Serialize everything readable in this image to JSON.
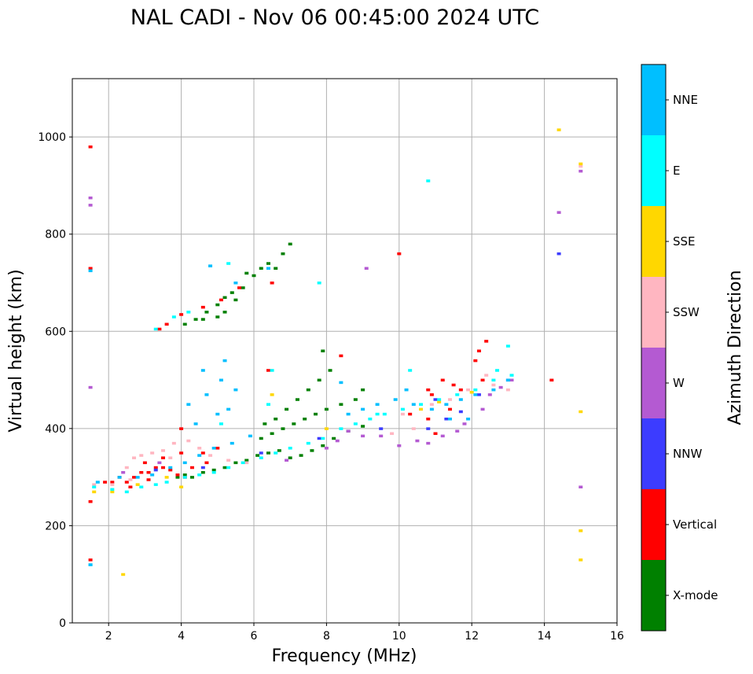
{
  "chart_data": {
    "type": "scatter",
    "title": "NAL CADI - Nov 06 00:45:00 2024 UTC",
    "xlabel": "Frequency (MHz)",
    "ylabel": "Virtual height (km)",
    "xlim": [
      1,
      16
    ],
    "ylim": [
      0,
      1120
    ],
    "xticks": [
      2,
      4,
      6,
      8,
      10,
      12,
      14,
      16
    ],
    "yticks": [
      0,
      200,
      400,
      600,
      800,
      1000
    ],
    "grid": true,
    "colorbar": {
      "label": "Azimuth Direction",
      "categories": [
        {
          "name": "X-mode",
          "color": "#008000"
        },
        {
          "name": "Vertical",
          "color": "#ff0000"
        },
        {
          "name": "NNW",
          "color": "#3c3cff"
        },
        {
          "name": "W",
          "color": "#b45ad2"
        },
        {
          "name": "SSW",
          "color": "#ffb6c1"
        },
        {
          "name": "SSE",
          "color": "#ffd700"
        },
        {
          "name": "E",
          "color": "#00ffff"
        },
        {
          "name": "NNE",
          "color": "#00bfff"
        }
      ]
    },
    "series": [
      {
        "name": "X-mode",
        "points": [
          [
            3.9,
            300
          ],
          [
            4.1,
            305
          ],
          [
            4.3,
            300
          ],
          [
            4.6,
            310
          ],
          [
            4.9,
            315
          ],
          [
            5.2,
            320
          ],
          [
            5.5,
            330
          ],
          [
            5.8,
            335
          ],
          [
            6.1,
            345
          ],
          [
            6.4,
            350
          ],
          [
            6.7,
            355
          ],
          [
            7.0,
            340
          ],
          [
            7.3,
            345
          ],
          [
            7.6,
            355
          ],
          [
            7.9,
            365
          ],
          [
            8.2,
            380
          ],
          [
            8.6,
            395
          ],
          [
            9.0,
            405
          ],
          [
            6.2,
            380
          ],
          [
            6.5,
            390
          ],
          [
            6.8,
            400
          ],
          [
            7.1,
            410
          ],
          [
            7.4,
            420
          ],
          [
            7.7,
            430
          ],
          [
            8.0,
            440
          ],
          [
            8.4,
            450
          ],
          [
            8.8,
            460
          ],
          [
            9.0,
            480
          ],
          [
            6.3,
            410
          ],
          [
            6.6,
            420
          ],
          [
            6.9,
            440
          ],
          [
            7.2,
            460
          ],
          [
            7.5,
            480
          ],
          [
            7.8,
            500
          ],
          [
            8.1,
            520
          ],
          [
            7.9,
            560
          ],
          [
            4.1,
            615
          ],
          [
            4.4,
            625
          ],
          [
            4.7,
            640
          ],
          [
            5.0,
            655
          ],
          [
            5.2,
            670
          ],
          [
            5.4,
            680
          ],
          [
            5.7,
            690
          ],
          [
            6.0,
            715
          ],
          [
            6.4,
            740
          ],
          [
            6.8,
            760
          ],
          [
            7.0,
            780
          ],
          [
            5.2,
            640
          ],
          [
            5.5,
            665
          ],
          [
            4.6,
            625
          ],
          [
            5.0,
            630
          ],
          [
            5.8,
            720
          ],
          [
            6.2,
            730
          ],
          [
            6.6,
            730
          ]
        ]
      },
      {
        "name": "Vertical",
        "points": [
          [
            1.5,
            980
          ],
          [
            1.5,
            730
          ],
          [
            1.5,
            250
          ],
          [
            1.5,
            130
          ],
          [
            1.9,
            290
          ],
          [
            2.1,
            290
          ],
          [
            2.3,
            300
          ],
          [
            2.5,
            290
          ],
          [
            2.7,
            300
          ],
          [
            2.9,
            310
          ],
          [
            3.1,
            310
          ],
          [
            3.3,
            320
          ],
          [
            3.5,
            320
          ],
          [
            3.7,
            315
          ],
          [
            3.9,
            305
          ],
          [
            4.1,
            300
          ],
          [
            4.3,
            320
          ],
          [
            4.7,
            330
          ],
          [
            3.1,
            295
          ],
          [
            2.6,
            280
          ],
          [
            3.0,
            330
          ],
          [
            3.5,
            340
          ],
          [
            4.0,
            350
          ],
          [
            4.0,
            400
          ],
          [
            4.6,
            350
          ],
          [
            5.0,
            360
          ],
          [
            6.4,
            520
          ],
          [
            8.4,
            550
          ],
          [
            10.0,
            760
          ],
          [
            10.8,
            480
          ],
          [
            10.9,
            470
          ],
          [
            11.2,
            500
          ],
          [
            11.5,
            490
          ],
          [
            11.7,
            480
          ],
          [
            12.1,
            540
          ],
          [
            12.2,
            560
          ],
          [
            12.4,
            580
          ],
          [
            14.2,
            500
          ],
          [
            3.4,
            605
          ],
          [
            3.6,
            615
          ],
          [
            4.0,
            635
          ],
          [
            4.6,
            650
          ],
          [
            5.1,
            665
          ],
          [
            5.6,
            690
          ],
          [
            6.5,
            700
          ],
          [
            10.3,
            430
          ],
          [
            10.8,
            420
          ],
          [
            11.4,
            440
          ],
          [
            12.3,
            500
          ],
          [
            11.0,
            390
          ]
        ]
      },
      {
        "name": "NNW",
        "points": [
          [
            3.3,
            315
          ],
          [
            4.6,
            320
          ],
          [
            6.2,
            350
          ],
          [
            10.8,
            400
          ],
          [
            11.3,
            420
          ],
          [
            11.7,
            435
          ],
          [
            12.2,
            470
          ],
          [
            13.0,
            500
          ],
          [
            14.4,
            760
          ],
          [
            7.8,
            380
          ],
          [
            9.5,
            400
          ],
          [
            11.0,
            460
          ]
        ]
      },
      {
        "name": "W",
        "points": [
          [
            1.5,
            860
          ],
          [
            1.5,
            875
          ],
          [
            1.5,
            485
          ],
          [
            8.0,
            360
          ],
          [
            8.3,
            375
          ],
          [
            8.6,
            395
          ],
          [
            9.0,
            385
          ],
          [
            9.5,
            385
          ],
          [
            10.0,
            365
          ],
          [
            10.5,
            375
          ],
          [
            10.8,
            370
          ],
          [
            11.2,
            385
          ],
          [
            11.6,
            395
          ],
          [
            11.8,
            410
          ],
          [
            12.3,
            440
          ],
          [
            12.5,
            470
          ],
          [
            12.8,
            485
          ],
          [
            13.1,
            500
          ],
          [
            14.4,
            845
          ],
          [
            15.0,
            280
          ],
          [
            15.0,
            930
          ],
          [
            9.1,
            730
          ],
          [
            2.4,
            310
          ],
          [
            3.4,
            330
          ],
          [
            6.9,
            335
          ]
        ]
      },
      {
        "name": "SSW",
        "points": [
          [
            1.6,
            285
          ],
          [
            2.1,
            285
          ],
          [
            2.5,
            320
          ],
          [
            2.7,
            340
          ],
          [
            2.9,
            345
          ],
          [
            3.2,
            350
          ],
          [
            3.5,
            355
          ],
          [
            3.8,
            370
          ],
          [
            4.2,
            375
          ],
          [
            4.5,
            360
          ],
          [
            4.8,
            345
          ],
          [
            5.3,
            335
          ],
          [
            5.8,
            330
          ],
          [
            9.8,
            390
          ],
          [
            10.4,
            400
          ],
          [
            10.9,
            450
          ],
          [
            11.4,
            460
          ],
          [
            11.9,
            480
          ],
          [
            12.4,
            510
          ],
          [
            12.6,
            490
          ],
          [
            13.0,
            480
          ],
          [
            15.0,
            940
          ],
          [
            2.6,
            295
          ],
          [
            3.7,
            340
          ],
          [
            10.1,
            430
          ]
        ]
      },
      {
        "name": "SSE",
        "points": [
          [
            1.6,
            270
          ],
          [
            2.1,
            270
          ],
          [
            2.4,
            100
          ],
          [
            2.8,
            285
          ],
          [
            3.6,
            300
          ],
          [
            4.0,
            280
          ],
          [
            6.5,
            470
          ],
          [
            10.6,
            440
          ],
          [
            12.0,
            475
          ],
          [
            14.4,
            1015
          ],
          [
            15.0,
            945
          ],
          [
            15.0,
            435
          ],
          [
            15.0,
            190
          ],
          [
            15.0,
            130
          ],
          [
            8.0,
            400
          ],
          [
            11.1,
            455
          ]
        ]
      },
      {
        "name": "E",
        "points": [
          [
            1.5,
            120
          ],
          [
            1.6,
            280
          ],
          [
            2.1,
            275
          ],
          [
            2.5,
            270
          ],
          [
            2.9,
            280
          ],
          [
            3.3,
            285
          ],
          [
            3.6,
            290
          ],
          [
            4.1,
            300
          ],
          [
            4.5,
            305
          ],
          [
            4.9,
            310
          ],
          [
            5.3,
            320
          ],
          [
            5.7,
            330
          ],
          [
            6.2,
            340
          ],
          [
            6.6,
            350
          ],
          [
            7.0,
            360
          ],
          [
            7.5,
            370
          ],
          [
            7.9,
            380
          ],
          [
            8.4,
            400
          ],
          [
            8.8,
            410
          ],
          [
            9.2,
            420
          ],
          [
            9.6,
            430
          ],
          [
            10.1,
            440
          ],
          [
            10.6,
            450
          ],
          [
            11.1,
            460
          ],
          [
            11.6,
            470
          ],
          [
            12.1,
            480
          ],
          [
            12.6,
            500
          ],
          [
            13.1,
            510
          ],
          [
            13.0,
            570
          ],
          [
            10.8,
            910
          ],
          [
            7.8,
            700
          ],
          [
            3.3,
            605
          ],
          [
            3.8,
            630
          ],
          [
            4.2,
            640
          ],
          [
            5.1,
            410
          ],
          [
            6.4,
            450
          ],
          [
            6.5,
            520
          ],
          [
            5.3,
            740
          ],
          [
            9.4,
            430
          ],
          [
            10.3,
            520
          ],
          [
            12.7,
            520
          ]
        ]
      },
      {
        "name": "NNE",
        "points": [
          [
            1.5,
            725
          ],
          [
            1.5,
            120
          ],
          [
            1.7,
            290
          ],
          [
            2.3,
            300
          ],
          [
            2.8,
            300
          ],
          [
            3.2,
            305
          ],
          [
            3.7,
            320
          ],
          [
            4.1,
            330
          ],
          [
            4.5,
            345
          ],
          [
            4.9,
            360
          ],
          [
            5.4,
            370
          ],
          [
            5.9,
            385
          ],
          [
            4.6,
            520
          ],
          [
            5.2,
            540
          ],
          [
            4.2,
            450
          ],
          [
            4.7,
            470
          ],
          [
            5.1,
            500
          ],
          [
            5.5,
            480
          ],
          [
            5.0,
            430
          ],
          [
            5.3,
            440
          ],
          [
            4.4,
            410
          ],
          [
            4.8,
            735
          ],
          [
            5.5,
            700
          ],
          [
            6.4,
            730
          ],
          [
            8.4,
            495
          ],
          [
            8.6,
            430
          ],
          [
            9.0,
            440
          ],
          [
            9.4,
            450
          ],
          [
            9.9,
            460
          ],
          [
            10.4,
            450
          ],
          [
            10.9,
            440
          ],
          [
            11.3,
            450
          ],
          [
            11.7,
            460
          ],
          [
            12.1,
            470
          ],
          [
            12.6,
            480
          ],
          [
            13.0,
            500
          ],
          [
            10.2,
            480
          ],
          [
            11.4,
            420
          ],
          [
            11.9,
            420
          ]
        ]
      }
    ]
  }
}
